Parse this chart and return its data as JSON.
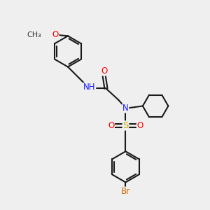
{
  "bg_color": "#efefef",
  "atom_colors": {
    "C": "#000000",
    "H": "#5a5a5a",
    "N": "#1a1aff",
    "O": "#ff0000",
    "S": "#ccaa00",
    "Br": "#cc6600"
  },
  "bond_color": "#1a1a1a",
  "bond_width": 1.5,
  "font_size_atom": 8.5,
  "scale": 1.0
}
